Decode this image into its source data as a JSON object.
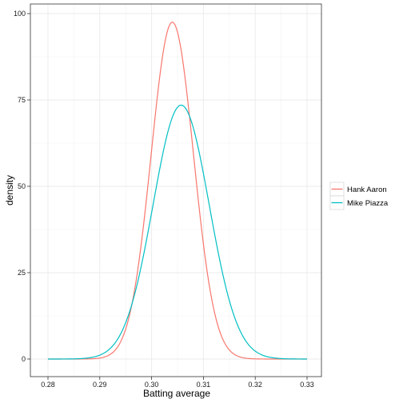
{
  "chart_data": {
    "type": "line",
    "xlabel": "Batting average",
    "ylabel": "density",
    "xlim": [
      0.28,
      0.33
    ],
    "ylim": [
      0,
      100
    ],
    "x_ticks": [
      "0.28",
      "0.29",
      "0.30",
      "0.31",
      "0.32",
      "0.33"
    ],
    "y_ticks": [
      "0",
      "25",
      "50",
      "75",
      "100"
    ],
    "grid": true,
    "legend_position": "right",
    "series": [
      {
        "name": "Hank Aaron",
        "color": "#f8766d",
        "distribution": "normal",
        "mean": 0.304,
        "peak_density": 97.5
      },
      {
        "name": "Mike Piazza",
        "color": "#00bfc4",
        "distribution": "normal",
        "mean": 0.3057,
        "peak_density": 73.5
      }
    ]
  }
}
